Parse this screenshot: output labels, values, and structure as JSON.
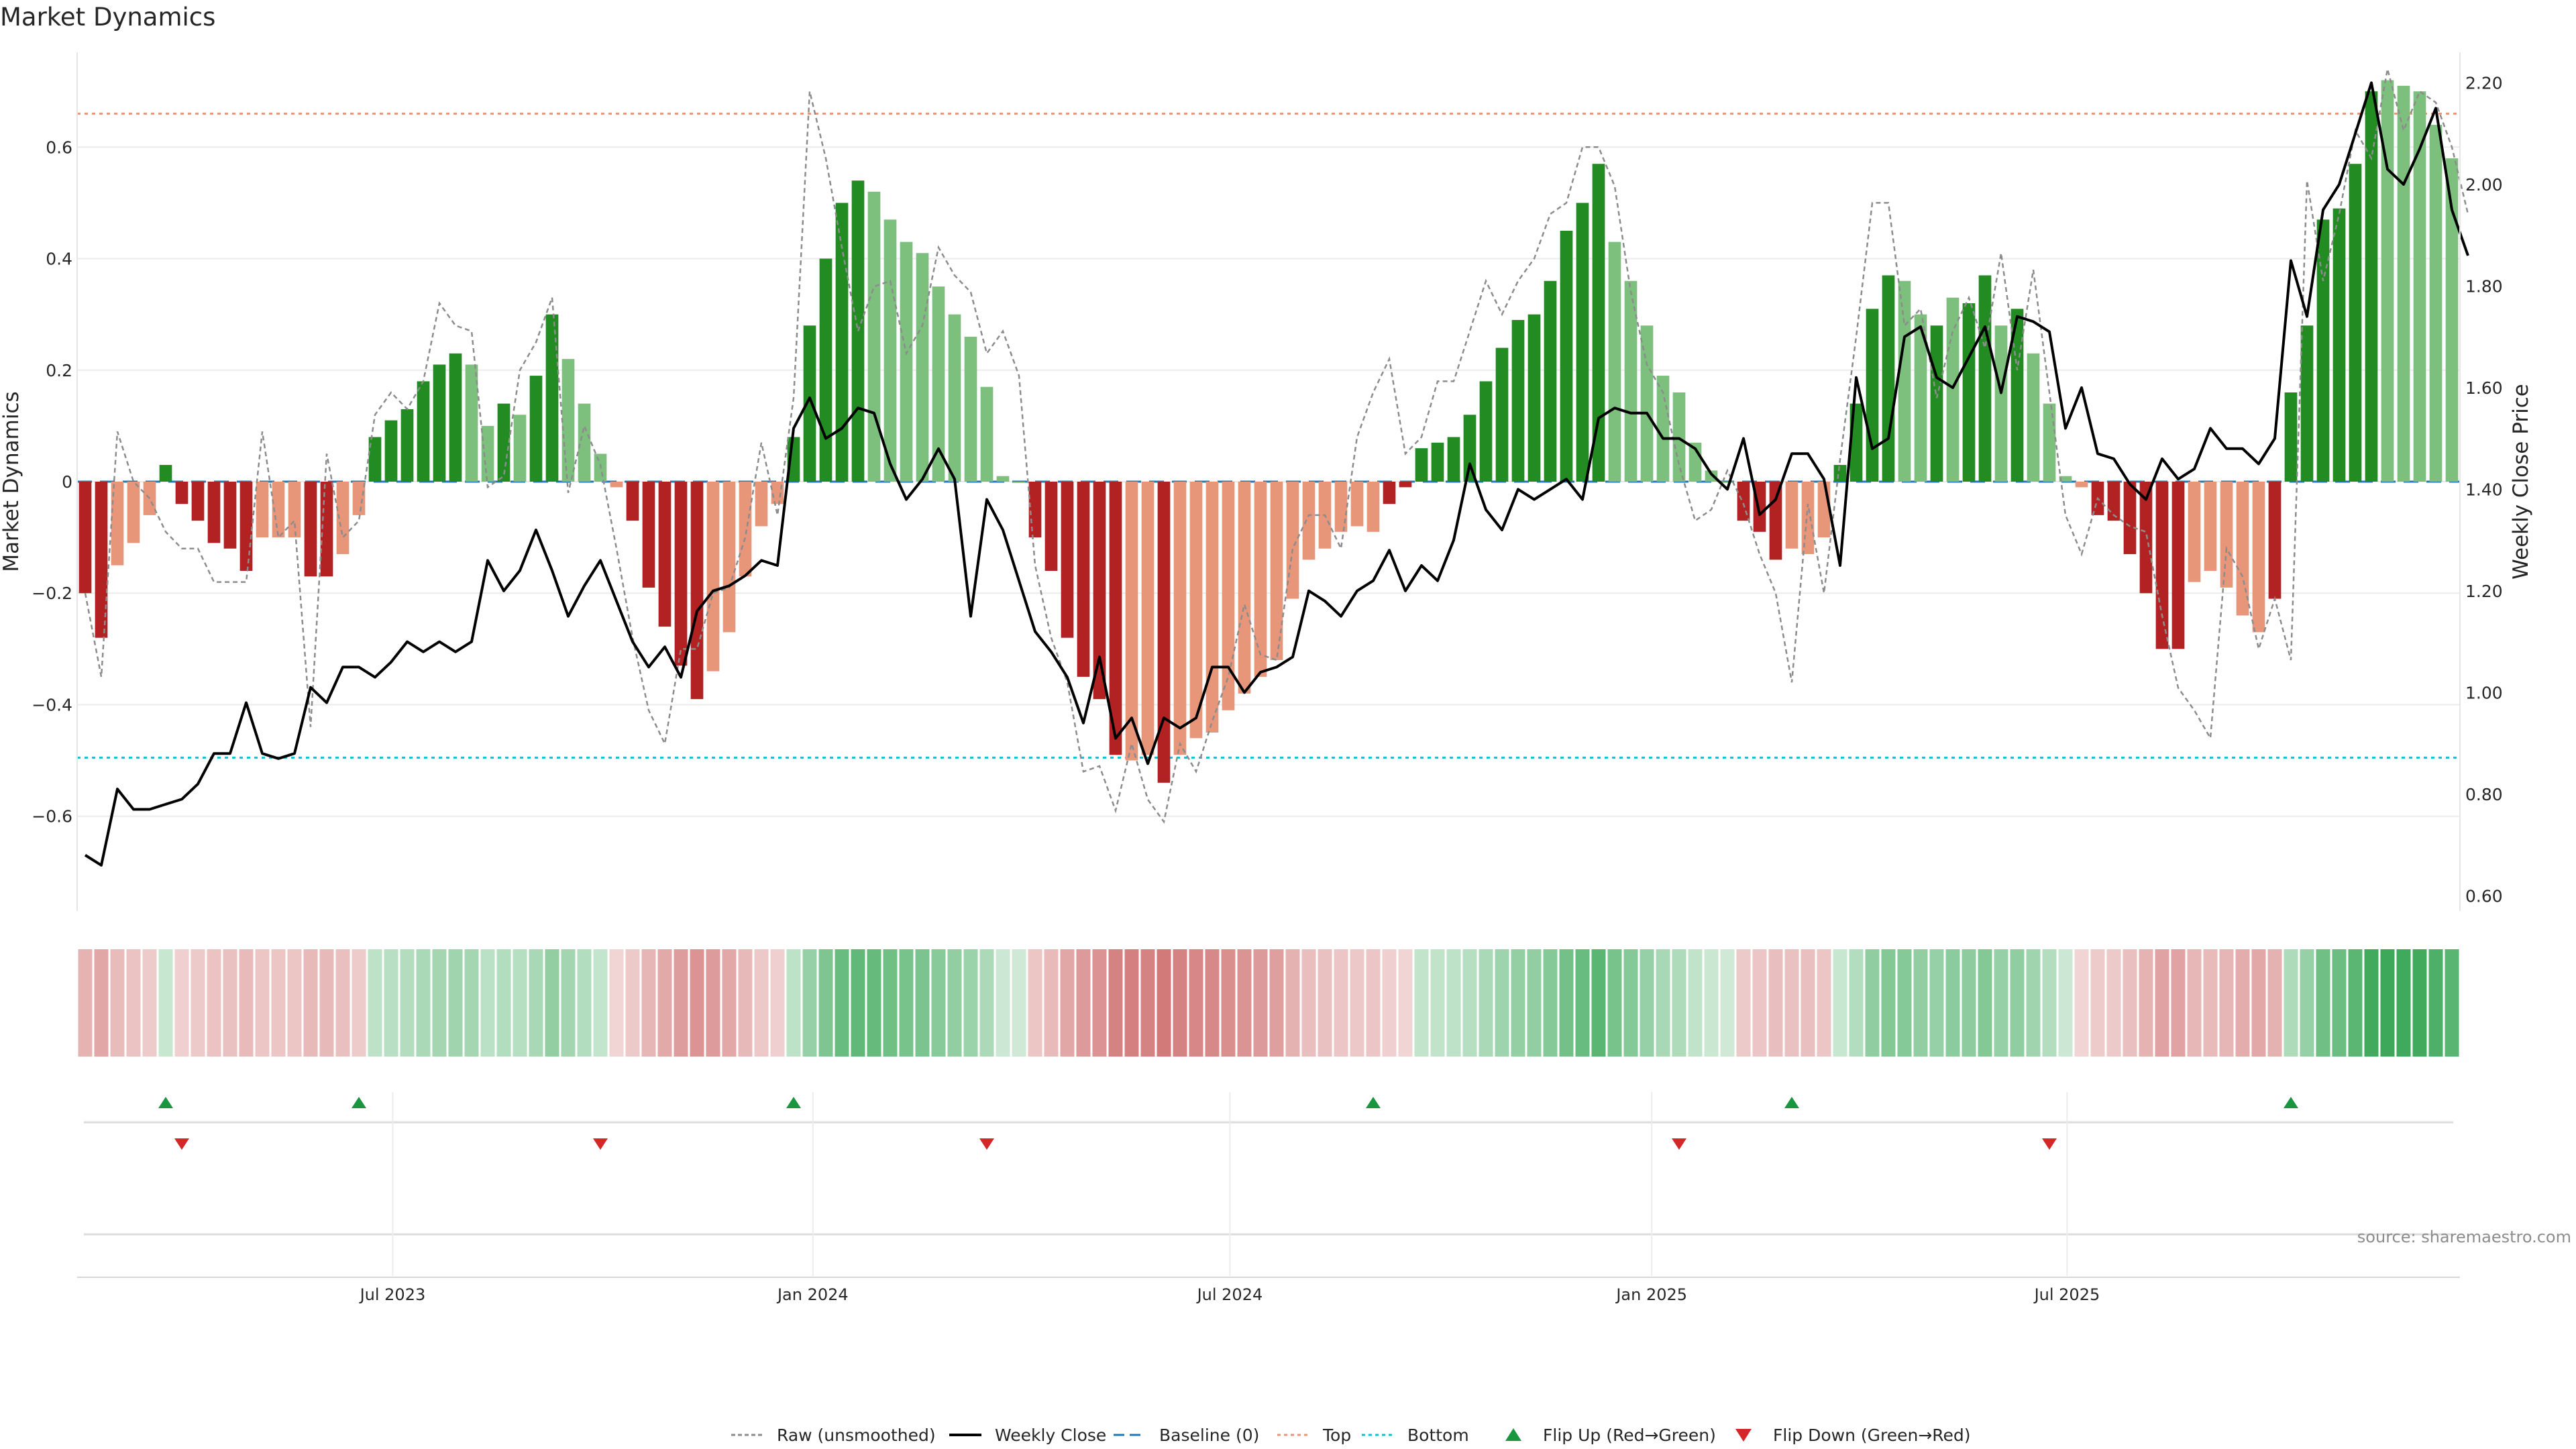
{
  "chart_data": {
    "type": "bar",
    "title": "Market Dynamics",
    "ylabel_left": "Market Dynamics",
    "ylabel_right": "Weekly Close Price",
    "ylim_left": [
      -0.77,
      0.77
    ],
    "ylim_right": [
      0.57,
      2.26
    ],
    "yticks_left": [
      -0.6,
      -0.4,
      -0.2,
      0,
      0.2,
      0.4,
      0.6
    ],
    "ytick_labels_left": [
      "−0.6",
      "−0.4",
      "−0.2",
      "0",
      "0.2",
      "0.4",
      "0.6"
    ],
    "yticks_right": [
      0.6,
      0.8,
      1.0,
      1.2,
      1.4,
      1.6,
      1.8,
      2.0,
      2.2
    ],
    "ytick_labels_right": [
      "0.60",
      "0.80",
      "1.00",
      "1.20",
      "1.40",
      "1.60",
      "1.80",
      "2.00",
      "2.20"
    ],
    "xticks": [
      {
        "week": 19.6,
        "label": "Jul 2023"
      },
      {
        "week": 45.7,
        "label": "Jan 2024"
      },
      {
        "week": 71.6,
        "label": "Jul 2024"
      },
      {
        "week": 97.8,
        "label": "Jan 2025"
      },
      {
        "week": 123.6,
        "label": "Jul 2025"
      }
    ],
    "top_level": 0.66,
    "bottom_level": -0.495,
    "baseline": 0,
    "colors": {
      "bar_up_strong": "#228b22",
      "bar_up_weak": "#7dc07d",
      "bar_down_strong": "#b22222",
      "bar_down_weak": "#e8967a",
      "raw_line": "#8c8c8c",
      "price_line": "#000000",
      "baseline": "#1f77b4",
      "top": "#e8967a",
      "bottom": "#17becf",
      "flip_up": "#1a9641",
      "flip_down": "#d62728"
    },
    "series": [
      {
        "name": "Market Dynamics",
        "values": [
          -0.2,
          -0.28,
          -0.15,
          -0.11,
          -0.06,
          0.03,
          -0.04,
          -0.07,
          -0.11,
          -0.12,
          -0.16,
          -0.1,
          -0.1,
          -0.1,
          -0.17,
          -0.17,
          -0.13,
          -0.06,
          0.08,
          0.11,
          0.13,
          0.18,
          0.21,
          0.23,
          0.21,
          0.1,
          0.14,
          0.12,
          0.19,
          0.3,
          0.22,
          0.14,
          0.05,
          -0.01,
          -0.07,
          -0.19,
          -0.26,
          -0.33,
          -0.39,
          -0.34,
          -0.27,
          -0.17,
          -0.08,
          -0.04,
          0.08,
          0.28,
          0.4,
          0.5,
          0.54,
          0.52,
          0.47,
          0.43,
          0.41,
          0.35,
          0.3,
          0.26,
          0.17,
          0.01,
          0,
          -0.1,
          -0.16,
          -0.28,
          -0.35,
          -0.39,
          -0.49,
          -0.5,
          -0.49,
          -0.54,
          -0.49,
          -0.46,
          -0.45,
          -0.41,
          -0.38,
          -0.35,
          -0.32,
          -0.21,
          -0.14,
          -0.12,
          -0.09,
          -0.08,
          -0.09,
          -0.04,
          -0.01,
          0.06,
          0.07,
          0.08,
          0.12,
          0.18,
          0.24,
          0.29,
          0.3,
          0.36,
          0.45,
          0.5,
          0.57,
          0.43,
          0.36,
          0.28,
          0.19,
          0.16,
          0.07,
          0.02,
          0,
          -0.07,
          -0.09,
          -0.14,
          -0.12,
          -0.13,
          -0.1,
          0.03,
          0.14,
          0.31,
          0.37,
          0.36,
          0.3,
          0.28,
          0.33,
          0.32,
          0.37,
          0.28,
          0.31,
          0.23,
          0.14,
          0.01,
          -0.01,
          -0.06,
          -0.07,
          -0.13,
          -0.2,
          -0.3,
          -0.3,
          -0.18,
          -0.16,
          -0.19,
          -0.24,
          -0.27,
          -0.21,
          0.16,
          0.28,
          0.47,
          0.49,
          0.57,
          0.7,
          0.72,
          0.71,
          0.7,
          0.64,
          0.58
        ],
        "strong": [
          1,
          1,
          0,
          0,
          0,
          1,
          1,
          1,
          1,
          1,
          1,
          0,
          0,
          0,
          1,
          1,
          0,
          0,
          1,
          1,
          1,
          1,
          1,
          1,
          0,
          0,
          1,
          0,
          1,
          1,
          0,
          0,
          0,
          0,
          1,
          1,
          1,
          1,
          1,
          0,
          0,
          0,
          0,
          0,
          1,
          1,
          1,
          1,
          1,
          0,
          0,
          0,
          0,
          0,
          0,
          0,
          0,
          0,
          0,
          1,
          1,
          1,
          1,
          1,
          1,
          0,
          0,
          1,
          0,
          0,
          0,
          0,
          0,
          0,
          0,
          0,
          0,
          0,
          0,
          0,
          0,
          1,
          1,
          1,
          1,
          1,
          1,
          1,
          1,
          1,
          1,
          1,
          1,
          1,
          1,
          0,
          0,
          0,
          0,
          0,
          0,
          0,
          0,
          1,
          1,
          1,
          0,
          0,
          0,
          1,
          1,
          1,
          1,
          0,
          0,
          1,
          0,
          1,
          1,
          0,
          1,
          0,
          0,
          0,
          0,
          1,
          1,
          1,
          1,
          1,
          1,
          0,
          0,
          0,
          0,
          0,
          1,
          1,
          1,
          1,
          1,
          1,
          1,
          0,
          0,
          0,
          0,
          0
        ]
      },
      {
        "name": "Raw (unsmoothed)",
        "values": [
          -0.2,
          -0.35,
          0.09,
          0,
          -0.03,
          -0.09,
          -0.12,
          -0.12,
          -0.18,
          -0.18,
          -0.18,
          0.09,
          -0.1,
          -0.07,
          -0.44,
          0.05,
          -0.1,
          -0.07,
          0.12,
          0.16,
          0.13,
          0.18,
          0.32,
          0.28,
          0.27,
          -0.01,
          0.01,
          0.2,
          0.25,
          0.33,
          -0.02,
          0.1,
          0.03,
          -0.12,
          -0.28,
          -0.41,
          -0.47,
          -0.3,
          -0.3,
          -0.2,
          -0.19,
          -0.1,
          0.07,
          -0.06,
          0.15,
          0.7,
          0.58,
          0.42,
          0.27,
          0.35,
          0.36,
          0.23,
          0.28,
          0.42,
          0.37,
          0.34,
          0.23,
          0.27,
          0.19,
          -0.15,
          -0.28,
          -0.36,
          -0.52,
          -0.51,
          -0.59,
          -0.47,
          -0.57,
          -0.61,
          -0.47,
          -0.52,
          -0.43,
          -0.35,
          -0.22,
          -0.31,
          -0.32,
          -0.12,
          -0.06,
          -0.06,
          -0.12,
          0.08,
          0.16,
          0.22,
          0.05,
          0.08,
          0.18,
          0.18,
          0.27,
          0.36,
          0.3,
          0.36,
          0.4,
          0.48,
          0.5,
          0.6,
          0.6,
          0.53,
          0.34,
          0.21,
          0.16,
          0.03,
          -0.07,
          -0.05,
          0.02,
          -0.04,
          -0.13,
          -0.2,
          -0.36,
          -0.04,
          -0.2,
          0.04,
          0.26,
          0.5,
          0.5,
          0.28,
          0.31,
          0.15,
          0.27,
          0.33,
          0.24,
          0.41,
          0.2,
          0.38,
          0.16,
          -0.06,
          -0.13,
          -0.03,
          -0.06,
          -0.08,
          -0.09,
          -0.24,
          -0.37,
          -0.41,
          -0.46,
          -0.12,
          -0.17,
          -0.3,
          -0.21,
          -0.32,
          0.54,
          0.36,
          0.48,
          0.63,
          0.58,
          0.74,
          0.63,
          0.7,
          0.68,
          0.6,
          0.48
        ]
      },
      {
        "name": "Weekly Close",
        "values": [
          0.68,
          0.66,
          0.81,
          0.77,
          0.77,
          0.78,
          0.79,
          0.82,
          0.88,
          0.88,
          0.98,
          0.88,
          0.87,
          0.88,
          1.01,
          0.98,
          1.05,
          1.05,
          1.03,
          1.06,
          1.1,
          1.08,
          1.1,
          1.08,
          1.1,
          1.26,
          1.2,
          1.24,
          1.32,
          1.24,
          1.15,
          1.21,
          1.26,
          1.18,
          1.1,
          1.05,
          1.09,
          1.03,
          1.16,
          1.2,
          1.21,
          1.23,
          1.26,
          1.25,
          1.52,
          1.58,
          1.5,
          1.52,
          1.56,
          1.55,
          1.45,
          1.38,
          1.42,
          1.48,
          1.42,
          1.15,
          1.38,
          1.32,
          1.22,
          1.12,
          1.08,
          1.03,
          0.94,
          1.07,
          0.91,
          0.95,
          0.86,
          0.95,
          0.93,
          0.95,
          1.05,
          1.05,
          1.0,
          1.04,
          1.05,
          1.07,
          1.2,
          1.18,
          1.15,
          1.2,
          1.22,
          1.28,
          1.2,
          1.25,
          1.22,
          1.3,
          1.45,
          1.36,
          1.32,
          1.4,
          1.38,
          1.4,
          1.42,
          1.38,
          1.54,
          1.56,
          1.55,
          1.55,
          1.5,
          1.5,
          1.48,
          1.43,
          1.4,
          1.5,
          1.35,
          1.38,
          1.47,
          1.47,
          1.42,
          1.25,
          1.62,
          1.48,
          1.5,
          1.7,
          1.72,
          1.62,
          1.6,
          1.66,
          1.72,
          1.59,
          1.74,
          1.73,
          1.71,
          1.52,
          1.6,
          1.47,
          1.46,
          1.41,
          1.38,
          1.46,
          1.42,
          1.44,
          1.52,
          1.48,
          1.48,
          1.45,
          1.5,
          1.85,
          1.74,
          1.95,
          2.0,
          2.1,
          2.2,
          2.03,
          2.0,
          2.07,
          2.15,
          1.95,
          1.86
        ]
      }
    ],
    "flip_up_weeks": [
      5,
      17,
      44,
      80,
      106,
      137
    ],
    "flip_down_weeks": [
      6,
      32,
      56,
      99,
      122
    ],
    "legend": [
      {
        "label": "Raw (unsmoothed)",
        "kind": "raw"
      },
      {
        "label": "Weekly Close",
        "kind": "close"
      },
      {
        "label": "Baseline (0)",
        "kind": "baseline"
      },
      {
        "label": "Top",
        "kind": "top"
      },
      {
        "label": "Bottom",
        "kind": "bottom"
      },
      {
        "label": "Flip Up (Red→Green)",
        "kind": "flipup"
      },
      {
        "label": "Flip Down (Green→Red)",
        "kind": "flipdown"
      }
    ],
    "source": "source: sharemaestro.com"
  }
}
